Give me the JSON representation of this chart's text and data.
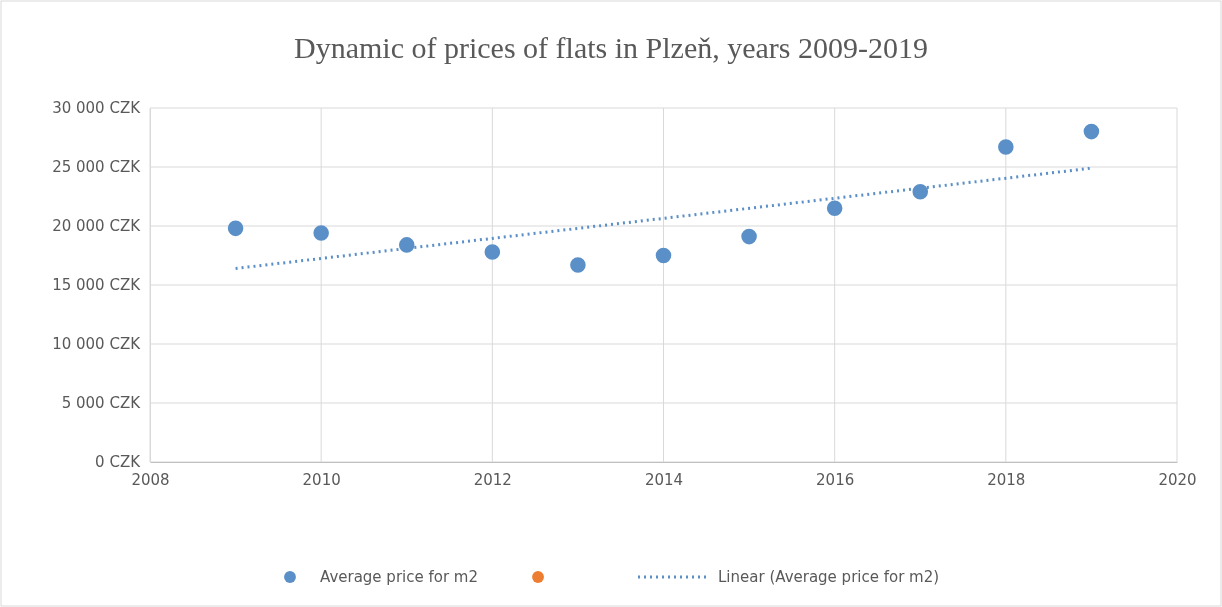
{
  "chart_data": {
    "type": "scatter",
    "title": "Dynamic of prices of flats in Plzeň, years 2009-2019",
    "x": [
      2009,
      2010,
      2011,
      2012,
      2013,
      2014,
      2015,
      2016,
      2017,
      2018,
      2019
    ],
    "series": [
      {
        "name": "Average price for m2",
        "color": "#5b8fc7",
        "marker": "circle",
        "values": [
          19800,
          19400,
          18400,
          17800,
          16700,
          17500,
          19100,
          21500,
          22900,
          26700,
          28000
        ]
      },
      {
        "color": "#ed7d31",
        "marker": "circle",
        "values": [
          null,
          null,
          null,
          null,
          null,
          null,
          null,
          null,
          null,
          null,
          null
        ]
      },
      {
        "name": "Linear (Average price for m2)",
        "type": "line",
        "color": "#5b8fc7",
        "line_style": "dotted",
        "marker": "none",
        "x": [
          2009,
          2019
        ],
        "values": [
          16400,
          24900
        ]
      }
    ],
    "xlim": [
      2008,
      2020
    ],
    "xticks": [
      2008,
      2010,
      2012,
      2014,
      2016,
      2018,
      2020
    ],
    "ylim": [
      0,
      30000
    ],
    "yticks": [
      {
        "value": 0,
        "label": "0 CZK"
      },
      {
        "value": 5000,
        "label": "5 000 CZK"
      },
      {
        "value": 10000,
        "label": "10 000 CZK"
      },
      {
        "value": 15000,
        "label": "15 000 CZK"
      },
      {
        "value": 20000,
        "label": "20 000 CZK"
      },
      {
        "value": 25000,
        "label": "25 000 CZK"
      },
      {
        "value": 30000,
        "label": "30 000 CZK"
      }
    ],
    "grid": true,
    "legend": "bottom"
  }
}
